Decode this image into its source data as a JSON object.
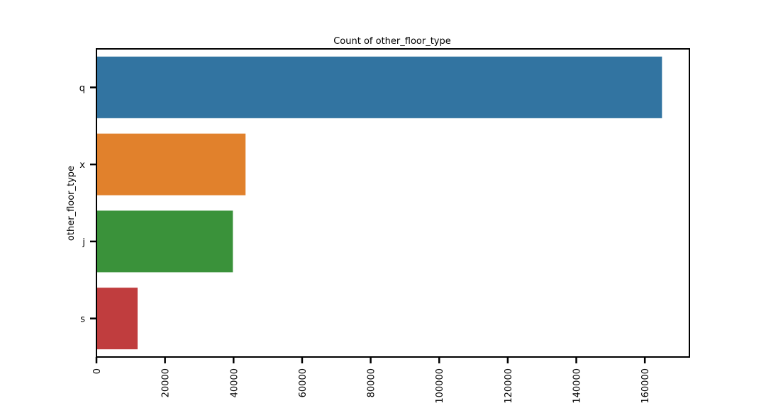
{
  "chart_data": {
    "type": "bar",
    "orientation": "horizontal",
    "title": "Count of other_floor_type",
    "ylabel": "other_floor_type",
    "xlabel": "",
    "categories": [
      "q",
      "x",
      "j",
      "s"
    ],
    "values": [
      165000,
      43500,
      39800,
      12000
    ],
    "colors": [
      "#3274a1",
      "#e1812c",
      "#3a923a",
      "#c03d3e"
    ],
    "xlim": [
      0,
      173000
    ],
    "xticks": [
      0,
      20000,
      40000,
      60000,
      80000,
      100000,
      120000,
      140000,
      160000
    ],
    "xtick_labels": [
      "0",
      "20000",
      "40000",
      "60000",
      "80000",
      "100000",
      "120000",
      "140000",
      "160000"
    ],
    "grid": false,
    "legend": "none"
  }
}
